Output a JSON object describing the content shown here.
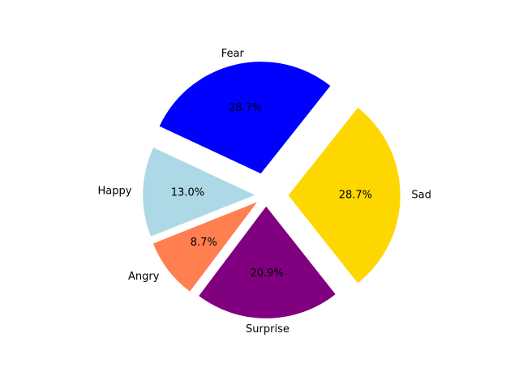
{
  "chart_data": {
    "type": "pie",
    "slices": [
      {
        "label": "Sad",
        "value": 28.7,
        "pct_label": "28.7%",
        "color": "#ffd700",
        "explode": 0.2
      },
      {
        "label": "Fear",
        "value": 28.7,
        "pct_label": "28.7%",
        "color": "#0000ff",
        "explode": 0.2
      },
      {
        "label": "Happy",
        "value": 13.0,
        "pct_label": "13.0%",
        "color": "#add8e6",
        "explode": 0.1
      },
      {
        "label": "Angry",
        "value": 8.7,
        "pct_label": "8.7%",
        "color": "#ff7f50",
        "explode": 0.1
      },
      {
        "label": "Surprise",
        "value": 20.9,
        "pct_label": "20.9%",
        "color": "#800080",
        "explode": 0.1
      }
    ],
    "start_angle_deg": -51.7,
    "direction": "counterclockwise"
  }
}
